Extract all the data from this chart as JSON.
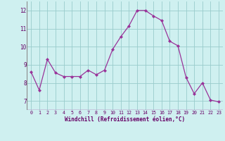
{
  "x": [
    0,
    1,
    2,
    3,
    4,
    5,
    6,
    7,
    8,
    9,
    10,
    11,
    12,
    13,
    14,
    15,
    16,
    17,
    18,
    19,
    20,
    21,
    22,
    23
  ],
  "y": [
    8.6,
    7.6,
    9.3,
    8.55,
    8.35,
    8.35,
    8.35,
    8.7,
    8.45,
    8.7,
    9.85,
    10.55,
    11.15,
    12.0,
    12.0,
    11.7,
    11.45,
    10.3,
    10.05,
    8.3,
    7.4,
    8.0,
    7.05,
    6.95
  ],
  "line_color": "#993399",
  "marker": "D",
  "marker_size": 2.0,
  "bg_color": "#cff0f0",
  "grid_color": "#99cccc",
  "xlabel": "Windchill (Refroidissement éolien,°C)",
  "xlabel_color": "#660066",
  "tick_color": "#660066",
  "xlim": [
    -0.5,
    23.5
  ],
  "ylim": [
    6.5,
    12.5
  ],
  "yticks": [
    7,
    8,
    9,
    10,
    11,
    12
  ],
  "xticks": [
    0,
    1,
    2,
    3,
    4,
    5,
    6,
    7,
    8,
    9,
    10,
    11,
    12,
    13,
    14,
    15,
    16,
    17,
    18,
    19,
    20,
    21,
    22,
    23
  ],
  "spine_color": "#993399"
}
